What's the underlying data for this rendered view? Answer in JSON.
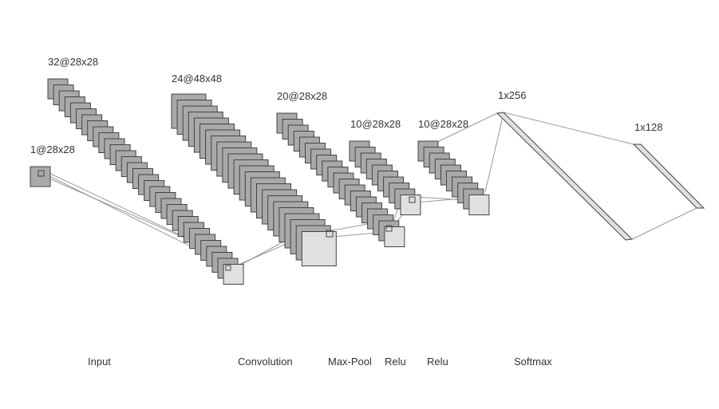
{
  "diagram": {
    "stack_labels": {
      "input": "1@28x28",
      "conv1": "32@28x28",
      "conv2": "24@48x48",
      "conv3": "20@28x28",
      "conv4": "10@28x28",
      "conv5": "10@28x28",
      "dense1": "1x256",
      "dense2": "1x128"
    },
    "captions": {
      "input": "Input",
      "convolution": "Convolution",
      "max_pool": "Max-Pool",
      "relu1": "Relu",
      "relu2": "Relu",
      "softmax": "Softmax"
    },
    "layers": [
      {
        "id": "input",
        "maps": 1
      },
      {
        "id": "conv1",
        "maps": 32
      },
      {
        "id": "conv2",
        "maps": 24
      },
      {
        "id": "conv3",
        "maps": 20
      },
      {
        "id": "conv4",
        "maps": 10
      },
      {
        "id": "conv5",
        "maps": 10
      },
      {
        "id": "dense1",
        "units": 256
      },
      {
        "id": "dense2",
        "units": 128
      }
    ],
    "colors": {
      "dark_map": "#a9a9a9",
      "light_map": "#e0e0e0",
      "map_stroke": "#444444",
      "line": "#999999",
      "text": "#333333"
    }
  }
}
